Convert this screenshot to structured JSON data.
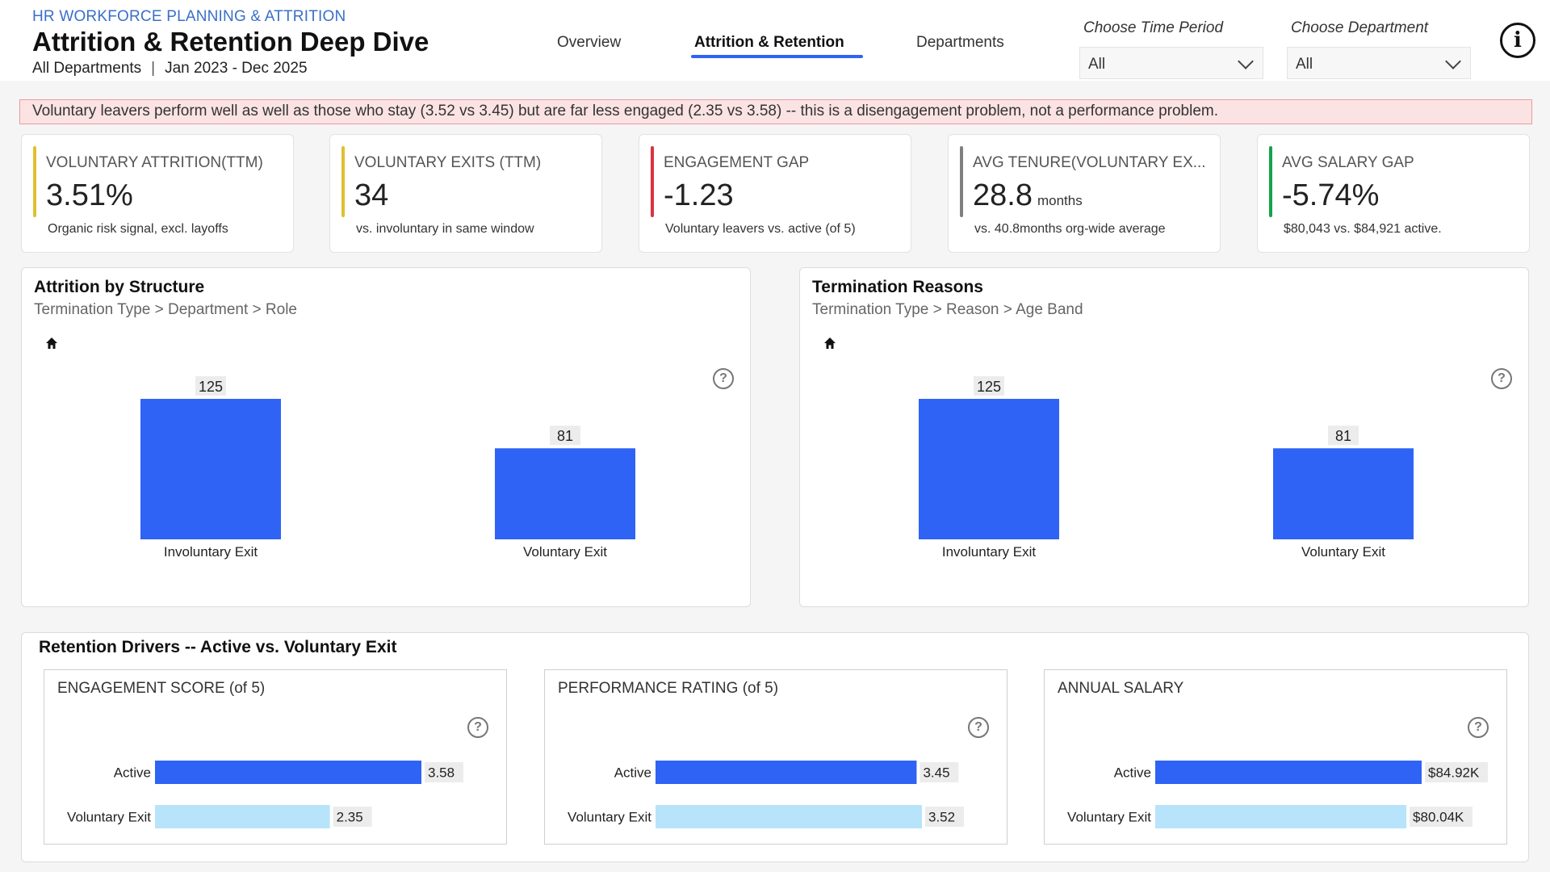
{
  "header": {
    "eyebrow": "HR WORKFORCE PLANNING & ATTRITION",
    "title": "Attrition & Retention Deep Dive",
    "scope": "All Departments",
    "date_range": "Jan 2023 - Dec 2025"
  },
  "nav": {
    "tabs": [
      {
        "label": "Overview",
        "active": false
      },
      {
        "label": "Attrition & Retention",
        "active": true
      },
      {
        "label": "Departments",
        "active": false
      }
    ]
  },
  "filters": {
    "time_label": "Choose Time Period",
    "time_value": "All",
    "dept_label": "Choose Department",
    "dept_value": "All"
  },
  "info_glyph": "i",
  "banner": "Voluntary leavers perform well as well as those who stay (3.52 vs 3.45) but are far less engaged (2.35 vs 3.58) -- this is a disengagement problem, not a performance problem.",
  "kpis": [
    {
      "title": "VOLUNTARY ATTRITION(TTM)",
      "value": "3.51%",
      "unit": "",
      "note": "Organic risk signal, excl. layoffs",
      "accent": "#e0c02f"
    },
    {
      "title": "VOLUNTARY EXITS (TTM)",
      "value": "34",
      "unit": "",
      "note": "vs. involuntary in same window",
      "accent": "#e0c02f"
    },
    {
      "title": "ENGAGEMENT GAP",
      "value": "-1.23",
      "unit": "",
      "note": "Voluntary leavers vs. active (of 5)",
      "accent": "#d9343f"
    },
    {
      "title": "AVG TENURE(VOLUNTARY EX...",
      "value": "28.8",
      "unit": "months",
      "note": "vs. 40.8months org-wide average",
      "accent": "#808080"
    },
    {
      "title": "AVG SALARY GAP",
      "value": "-5.74%",
      "unit": "",
      "note": "$80,043 vs. $84,921 active.",
      "accent": "#16a34a"
    }
  ],
  "panels": {
    "structure": {
      "title": "Attrition by Structure",
      "crumb": "Termination Type > Department > Role"
    },
    "reasons": {
      "title": "Termination Reasons",
      "crumb": "Termination Type > Reason > Age Band"
    },
    "drivers": {
      "title": "Retention Drivers -- Active vs. Voluntary Exit"
    }
  },
  "chart_data": [
    {
      "type": "bar",
      "title": "Attrition by Structure",
      "categories": [
        "Involuntary Exit",
        "Voluntary Exit"
      ],
      "values": [
        125,
        81
      ],
      "color": "#2f63f5"
    },
    {
      "type": "bar",
      "title": "Termination Reasons",
      "categories": [
        "Involuntary Exit",
        "Voluntary Exit"
      ],
      "values": [
        125,
        81
      ],
      "color": "#2f63f5"
    },
    {
      "type": "bar",
      "orientation": "horizontal",
      "title": "ENGAGEMENT SCORE (of 5)",
      "categories": [
        "Active",
        "Voluntary Exit"
      ],
      "values": [
        3.58,
        2.35
      ],
      "labels": [
        "3.58",
        "2.35"
      ],
      "colors": [
        "#2f63f5",
        "#b7e4fb"
      ]
    },
    {
      "type": "bar",
      "orientation": "horizontal",
      "title": "PERFORMANCE RATING (of 5)",
      "categories": [
        "Active",
        "Voluntary Exit"
      ],
      "values": [
        3.45,
        3.52
      ],
      "labels": [
        "3.45",
        "3.52"
      ],
      "colors": [
        "#2f63f5",
        "#b7e4fb"
      ]
    },
    {
      "type": "bar",
      "orientation": "horizontal",
      "title": "ANNUAL SALARY",
      "categories": [
        "Active",
        "Voluntary Exit"
      ],
      "values": [
        84921,
        80043
      ],
      "labels": [
        "$84.92K",
        "$80.04K"
      ],
      "colors": [
        "#2f63f5",
        "#b7e4fb"
      ]
    }
  ]
}
